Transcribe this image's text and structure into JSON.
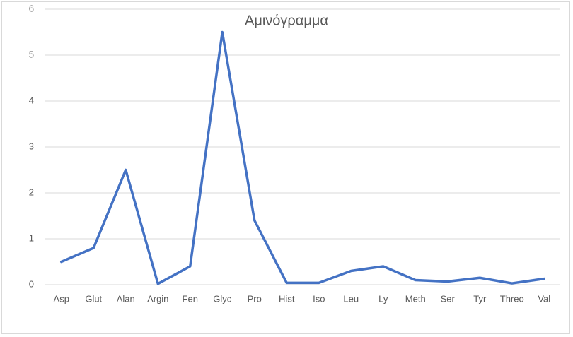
{
  "chart_data": {
    "type": "line",
    "title": "Αμινόγραμμα",
    "categories": [
      "Asp",
      "Glut",
      "Alan",
      "Argin",
      "Fen",
      "Glyc",
      "Pro",
      "Hist",
      "Iso",
      "Leu",
      "Ly",
      "Meth",
      "Ser",
      "Tyr",
      "Threo",
      "Val"
    ],
    "series": [
      {
        "color": "#4472c4",
        "values": [
          0.5,
          0.8,
          2.5,
          0.02,
          0.4,
          5.5,
          1.4,
          0.04,
          0.04,
          0.3,
          0.4,
          0.1,
          0.07,
          0.15,
          0.03,
          0.13
        ]
      }
    ],
    "ylim": [
      0,
      6
    ],
    "yticks": [
      0,
      1,
      2,
      3,
      4,
      5,
      6
    ],
    "grid": true
  }
}
